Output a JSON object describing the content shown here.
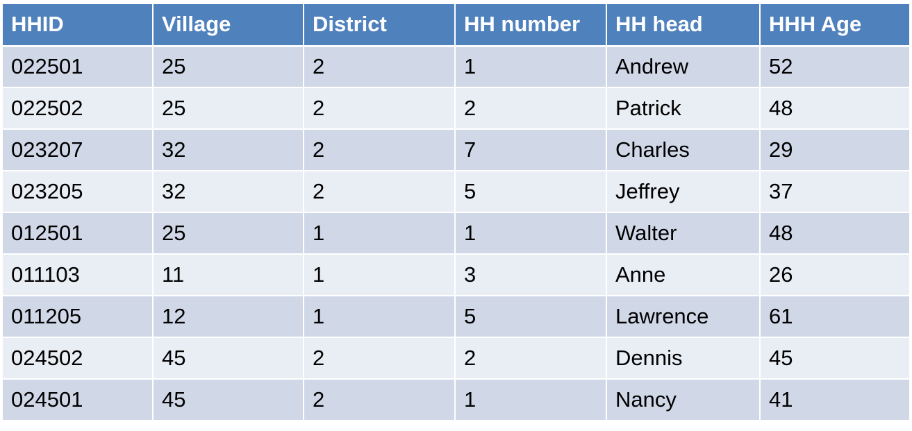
{
  "table": {
    "headers": [
      "HHID",
      "Village",
      "District",
      "HH number",
      "HH head",
      "HHH Age"
    ],
    "rows": [
      [
        "022501",
        "25",
        "2",
        "1",
        "Andrew",
        "52"
      ],
      [
        "022502",
        "25",
        "2",
        "2",
        "Patrick",
        "48"
      ],
      [
        "023207",
        "32",
        "2",
        "7",
        "Charles",
        "29"
      ],
      [
        "023205",
        "32",
        "2",
        "5",
        "Jeffrey",
        "37"
      ],
      [
        "012501",
        "25",
        "1",
        "1",
        "Walter",
        "48"
      ],
      [
        "011103",
        "11",
        "1",
        "3",
        "Anne",
        "26"
      ],
      [
        "011205",
        "12",
        "1",
        "5",
        "Lawrence",
        "61"
      ],
      [
        "024502",
        "45",
        "2",
        "2",
        "Dennis",
        "45"
      ],
      [
        "024501",
        "45",
        "2",
        "1",
        "Nancy",
        "41"
      ]
    ]
  },
  "colors": {
    "header_bg": "#4f81bd",
    "row_odd": "#d0d8e8",
    "row_even": "#e9edf4",
    "header_text": "#ffffff",
    "body_text": "#000000"
  }
}
